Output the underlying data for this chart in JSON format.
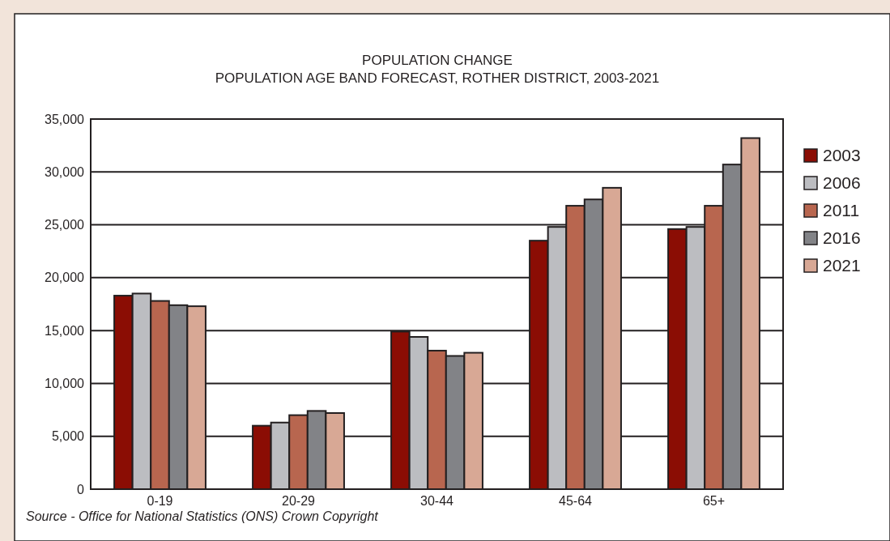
{
  "chart_data": {
    "type": "bar",
    "title": "POPULATION CHANGE",
    "subtitle": "POPULATION AGE BAND FORECAST, ROTHER DISTRICT, 2003-2021",
    "categories": [
      "0-19",
      "20-29",
      "30-44",
      "45-64",
      "65+"
    ],
    "series": [
      {
        "name": "2003",
        "color": "#8b0d04",
        "values": [
          18300,
          6000,
          14900,
          23500,
          24600
        ]
      },
      {
        "name": "2006",
        "color": "#bcbdc1",
        "values": [
          18500,
          6300,
          14400,
          24800,
          24800
        ]
      },
      {
        "name": "2011",
        "color": "#b8664f",
        "values": [
          17800,
          7000,
          13100,
          26800,
          26800
        ]
      },
      {
        "name": "2016",
        "color": "#828387",
        "values": [
          17400,
          7400,
          12600,
          27400,
          30700
        ]
      },
      {
        "name": "2021",
        "color": "#d8a895",
        "values": [
          17300,
          7200,
          12900,
          28500,
          33200
        ]
      }
    ],
    "ylim": [
      0,
      35000
    ],
    "yticks": [
      {
        "value": 0,
        "label": "0"
      },
      {
        "value": 5000,
        "label": "5,000"
      },
      {
        "value": 10000,
        "label": "10,000"
      },
      {
        "value": 15000,
        "label": "15,000"
      },
      {
        "value": 20000,
        "label": "20,000"
      },
      {
        "value": 25000,
        "label": "25,000"
      },
      {
        "value": 30000,
        "label": "30,000"
      },
      {
        "value": 35000,
        "label": "35,000"
      }
    ],
    "grid": "y",
    "legend": "right",
    "annotations": [
      "Source - Office for National Statistics (ONS) Crown Copyright"
    ]
  }
}
